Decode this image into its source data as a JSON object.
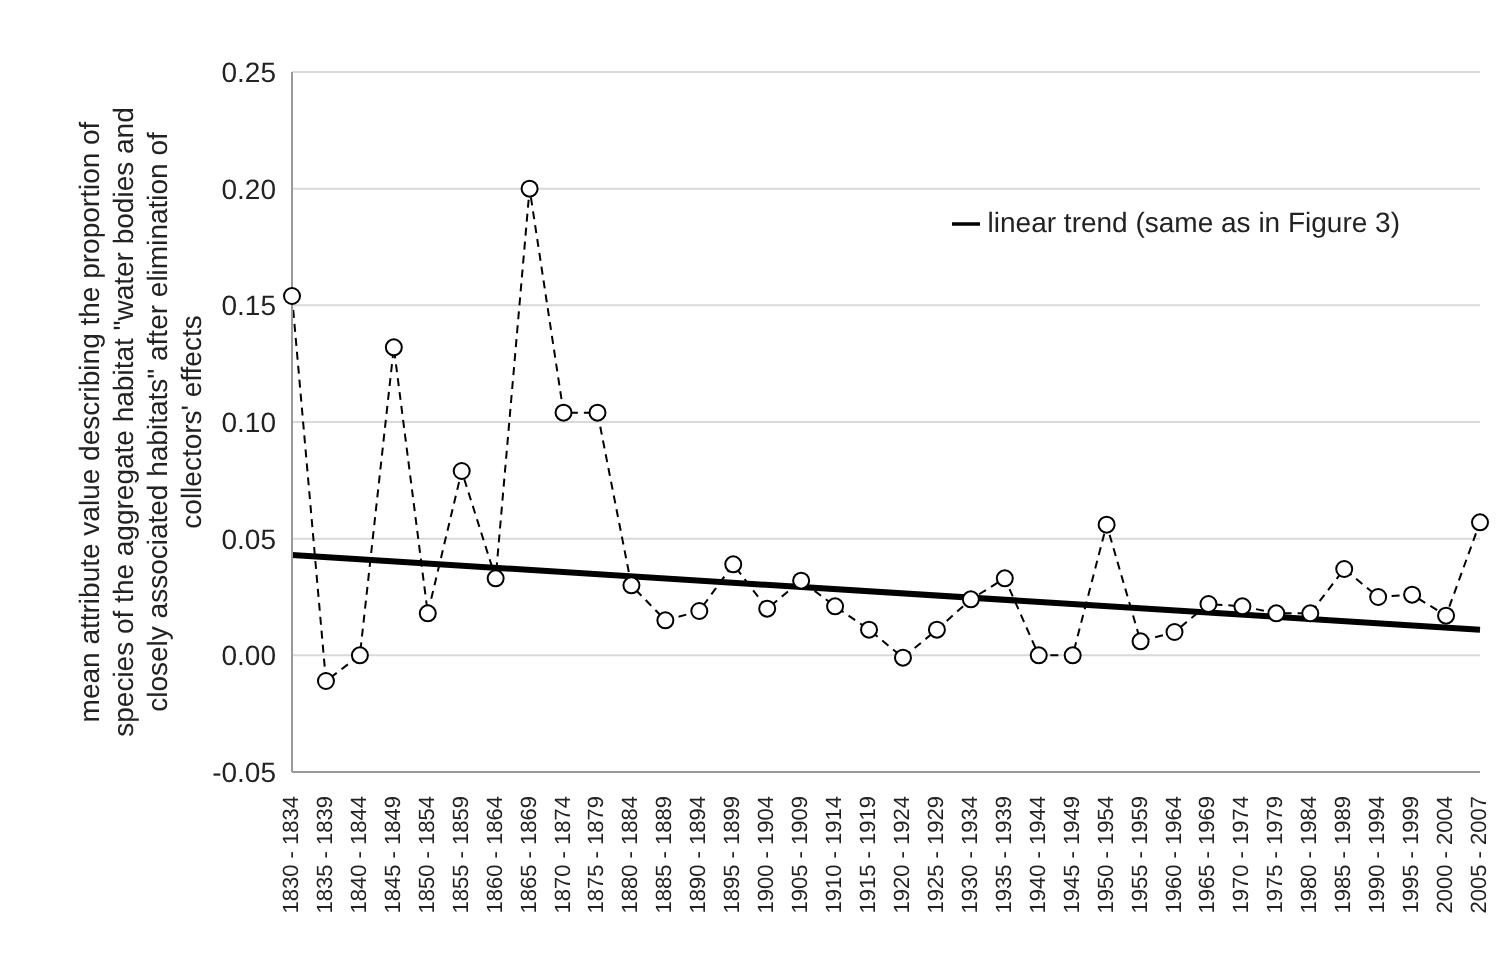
{
  "chart_data": {
    "type": "line",
    "ylabel": "mean attribute value describing the proportion of species of the aggregate habitat \"water bodies and closely associated habitats\" after elimination of collectors' effects",
    "categories": [
      "1830 - 1834",
      "1835 - 1839",
      "1840 - 1844",
      "1845 - 1849",
      "1850 - 1854",
      "1855 - 1859",
      "1860 - 1864",
      "1865 - 1869",
      "1870 - 1874",
      "1875 - 1879",
      "1880 - 1884",
      "1885 - 1889",
      "1890 - 1894",
      "1895 - 1899",
      "1900 - 1904",
      "1905 - 1909",
      "1910 - 1914",
      "1915 - 1919",
      "1920 - 1924",
      "1925 - 1929",
      "1930 - 1934",
      "1935 - 1939",
      "1940 - 1944",
      "1945 - 1949",
      "1950 - 1954",
      "1955 - 1959",
      "1960 - 1964",
      "1965 - 1969",
      "1970 - 1974",
      "1975 - 1979",
      "1980 - 1984",
      "1985 - 1989",
      "1990 - 1994",
      "1995 - 1999",
      "2000 - 2004",
      "2005 - 2007"
    ],
    "series": [
      {
        "color": "#000000",
        "marker": "circle",
        "line_style": "dashed",
        "values": [
          0.154,
          -0.011,
          0.0,
          0.132,
          0.018,
          0.079,
          0.033,
          0.2,
          0.104,
          0.104,
          0.03,
          0.015,
          0.019,
          0.039,
          0.02,
          0.032,
          0.021,
          0.011,
          -0.001,
          0.011,
          0.024,
          0.033,
          0.0,
          0.0,
          0.056,
          0.006,
          0.01,
          0.022,
          0.021,
          0.018,
          0.018,
          0.037,
          0.025,
          0.026,
          0.017,
          0.057
        ]
      },
      {
        "name": "linear trend (same as in Figure 3)",
        "type": "line",
        "color": "#000000",
        "marker": "none",
        "line_style": "solid",
        "x": [
          "1830 - 1834",
          "2005 - 2007"
        ],
        "values": [
          0.043,
          0.011
        ]
      }
    ],
    "ylim": [
      -0.05,
      0.25
    ],
    "yticks": [
      {
        "value": -0.05,
        "label": "-0.05"
      },
      {
        "value": 0,
        "label": "0.00"
      },
      {
        "value": 0.05,
        "label": "0.05"
      },
      {
        "value": 0.1,
        "label": "0.10"
      },
      {
        "value": 0.15,
        "label": "0.15"
      },
      {
        "value": 0.2,
        "label": "0.20"
      },
      {
        "value": 0.25,
        "label": "0.25"
      }
    ],
    "grid": "y",
    "legend": "top right"
  }
}
